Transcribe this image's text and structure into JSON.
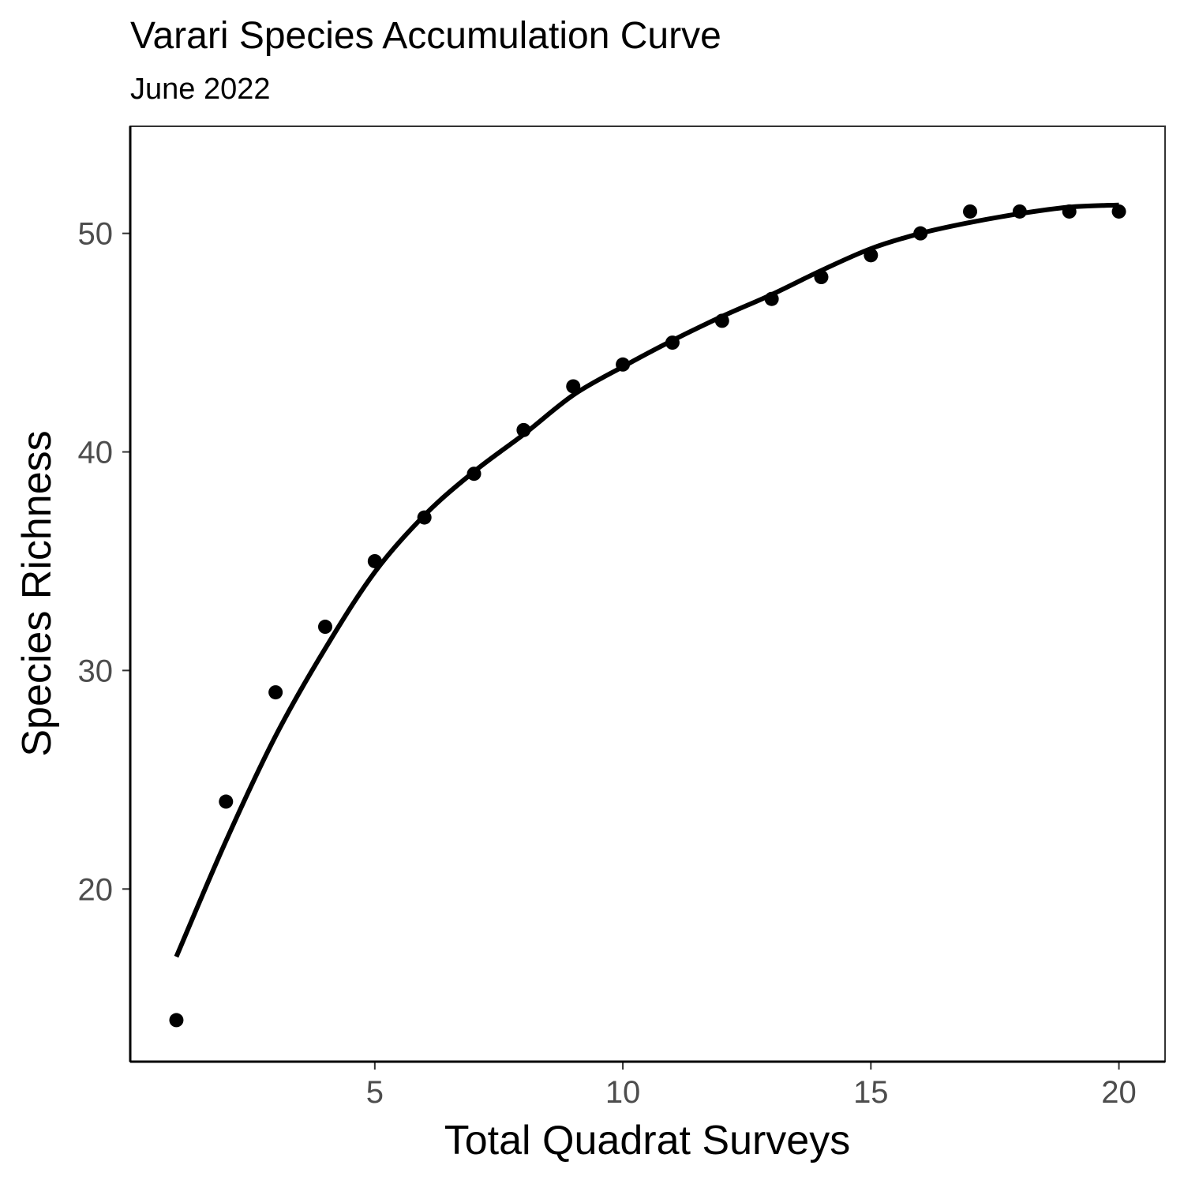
{
  "chart_data": {
    "type": "scatter",
    "title": "Varari Species Accumulation Curve",
    "subtitle": "June 2022",
    "xlabel": "Total Quadrat Surveys",
    "ylabel": "Species Richness",
    "xlim": [
      0.07,
      20.93
    ],
    "ylim": [
      12.1,
      54.9
    ],
    "xticks": [
      5,
      10,
      15,
      20
    ],
    "yticks": [
      20,
      30,
      40,
      50
    ],
    "grid": false,
    "points": {
      "x": [
        1,
        2,
        3,
        4,
        5,
        6,
        7,
        8,
        9,
        10,
        11,
        12,
        13,
        14,
        15,
        16,
        17,
        18,
        19,
        20
      ],
      "y": [
        14,
        24,
        29,
        32,
        35,
        37,
        39,
        41,
        43,
        44,
        45,
        46,
        47,
        48,
        49,
        50,
        51,
        51,
        51,
        51
      ]
    },
    "fit_line": {
      "x": [
        1,
        2,
        3,
        4,
        5,
        6,
        7,
        8,
        9,
        10,
        11,
        12,
        13,
        14,
        15,
        16,
        17,
        18,
        19,
        20
      ],
      "y": [
        16.9,
        22.2,
        27.0,
        31.0,
        34.5,
        37.1,
        39.1,
        40.8,
        42.6,
        43.9,
        45.1,
        46.2,
        47.2,
        48.3,
        49.3,
        50.0,
        50.5,
        50.9,
        51.2,
        51.3
      ]
    },
    "point_color": "#000000",
    "line_color": "#000000"
  }
}
